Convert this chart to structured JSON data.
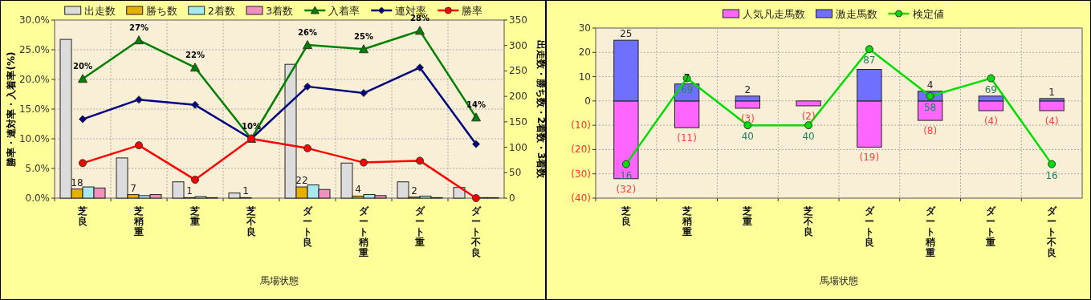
{
  "chart_data": [
    {
      "type": "bar",
      "xlabel": "馬場状態",
      "ylabel": "勝率・連対率・入着率(%)",
      "y2label": "出走数・勝ち数・2着数・3着数",
      "categories": [
        "芝良",
        "芝稍重",
        "芝重",
        "芝不良",
        "ダート良",
        "ダート稍重",
        "ダート重",
        "ダート不良"
      ],
      "series": [
        {
          "name": "出走数",
          "color": "#dcdcdc",
          "axis": "y2",
          "values": [
            312,
            79,
            32,
            10,
            263,
            69,
            32,
            21
          ]
        },
        {
          "name": "勝ち数",
          "color": "#e8b000",
          "axis": "y2",
          "values": [
            18,
            7,
            1,
            1,
            22,
            4,
            2,
            0
          ],
          "value_labels": [
            "18",
            "7",
            "1",
            "1",
            "22",
            "4",
            "2",
            null
          ]
        },
        {
          "name": "2着数",
          "color": "#a8e8f0",
          "axis": "y2",
          "values": [
            22,
            5,
            3,
            0,
            26,
            7,
            4,
            1
          ]
        },
        {
          "name": "3着数",
          "color": "#f090c0",
          "axis": "y2",
          "values": [
            20,
            7,
            1,
            0,
            17,
            5,
            1,
            1
          ]
        },
        {
          "name": "入着率",
          "type": "line",
          "color": "#008000",
          "marker": "triangle",
          "values": [
            20.1,
            26.6,
            22,
            10,
            25.8,
            25.1,
            28.2,
            13.6
          ],
          "value_labels": [
            "20%",
            "27%",
            "22%",
            "10%",
            "26%",
            "25%",
            "28%",
            "14%"
          ]
        },
        {
          "name": "連対率",
          "type": "line",
          "color": "#000080",
          "marker": "diamond",
          "values": [
            13.3,
            16.6,
            15.7,
            10,
            18.8,
            17.7,
            22,
            9.1
          ]
        },
        {
          "name": "勝率",
          "type": "line",
          "color": "#ff0000",
          "marker": "circle",
          "values": [
            5.9,
            8.9,
            3.1,
            10,
            8.4,
            6,
            6.3,
            0
          ]
        }
      ],
      "ylim": [
        0,
        30
      ],
      "yticks": [
        {
          "value": 0,
          "label": "0.0%"
        },
        {
          "value": 5,
          "label": "5.0%"
        },
        {
          "value": 10,
          "label": "10.0%"
        },
        {
          "value": 15,
          "label": "15.0%"
        },
        {
          "value": 20,
          "label": "20.0%"
        },
        {
          "value": 25,
          "label": "25.0%"
        },
        {
          "value": 30,
          "label": "30.0%"
        }
      ],
      "y2lim": [
        0,
        350
      ],
      "y2ticks": [
        0,
        50,
        100,
        150,
        200,
        250,
        300,
        350
      ],
      "grid": true,
      "legend": "top"
    },
    {
      "type": "bar",
      "stacked": true,
      "xlabel": "馬場状態",
      "categories": [
        "芝良",
        "芝稍重",
        "芝重",
        "芝不良",
        "ダート良",
        "ダート稍重",
        "ダート重",
        "ダート不良"
      ],
      "series": [
        {
          "name": "人気凡走馬数",
          "color": "#ff66ff",
          "values": [
            -32,
            -11,
            -3,
            -2,
            -19,
            -8,
            -4,
            -4
          ],
          "value_labels": [
            "(32)",
            "(11)",
            "(3)",
            "(2)",
            "(19)",
            "(8)",
            "(4)",
            "(4)"
          ]
        },
        {
          "name": "激走馬数",
          "color": "#7070ff",
          "values": [
            25,
            7,
            2,
            0,
            13,
            4,
            2,
            1
          ],
          "value_labels": [
            "25",
            "7",
            "2",
            null,
            null,
            "4",
            null,
            "1"
          ]
        },
        {
          "name": "検定値",
          "type": "line",
          "axis": "y2",
          "color": "#00dd00",
          "marker": "circle",
          "values": [
            16,
            69,
            40,
            40,
            87,
            58,
            69,
            16
          ],
          "value_labels": [
            "16",
            "69",
            "40",
            "40",
            "87",
            "58",
            "69",
            "16"
          ]
        }
      ],
      "ylim": [
        -40,
        30
      ],
      "yticks": [
        {
          "value": 30,
          "label": "30"
        },
        {
          "value": 20,
          "label": "20"
        },
        {
          "value": 10,
          "label": "10"
        },
        {
          "value": 0,
          "label": "0"
        },
        {
          "value": -10,
          "label": "(10)"
        },
        {
          "value": -20,
          "label": "(20)"
        },
        {
          "value": -30,
          "label": "(30)"
        },
        {
          "value": -40,
          "label": "(40)"
        }
      ],
      "y2lim": [
        -5,
        100
      ],
      "grid": true,
      "legend": "top"
    }
  ]
}
